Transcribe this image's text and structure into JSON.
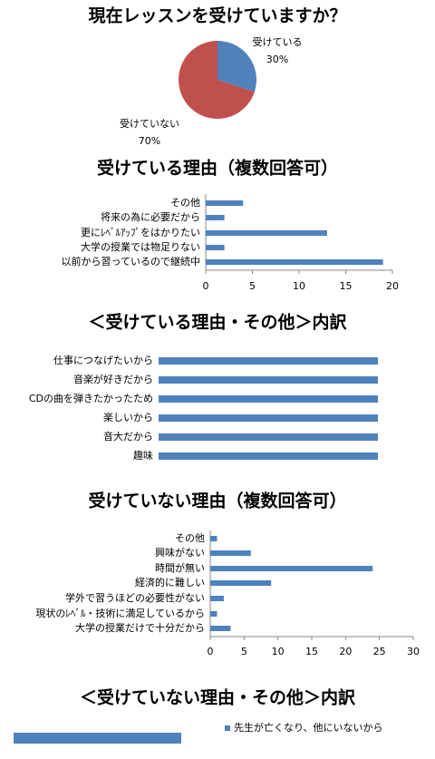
{
  "chart_data": [
    {
      "type": "pie",
      "title": "現在レッスンを受けていますか？",
      "categories": [
        "受けている",
        "受けていない"
      ],
      "values": [
        30,
        70
      ],
      "value_labels": [
        "30%",
        "70%"
      ],
      "colors": [
        "#4f81bd",
        "#c0504d"
      ]
    },
    {
      "type": "hbar",
      "title": "受けている理由（複数回答可）",
      "categories": [
        "その他",
        "将来の為に必要だから",
        "更にﾚﾍﾞﾙｱｯﾌﾟをはかりたい",
        "大学の授業では物足りない",
        "以前から習っているので継続中"
      ],
      "values": [
        4,
        2,
        13,
        2,
        19
      ],
      "color": "#4f81bd",
      "xlim": [
        0,
        20
      ],
      "xticks": [
        0,
        5,
        10,
        15,
        20
      ]
    },
    {
      "type": "hbar",
      "title": "＜受けている理由・その他＞内訳",
      "categories": [
        "仕事につなげたいから",
        "音楽が好きだから",
        "CDの曲を弾きたかったため",
        "楽しいから",
        "音大だから",
        "趣味"
      ],
      "values": [
        1,
        1,
        1,
        1,
        1,
        1
      ],
      "color": "#4f81bd",
      "xlim": [
        0,
        1
      ]
    },
    {
      "type": "hbar",
      "title": "受けていない理由（複数回答可）",
      "categories": [
        "その他",
        "興味がない",
        "時間が無い",
        "経済的に難しい",
        "学外で習うほどの必要性がない",
        "現状のﾚﾍﾞﾙ・技術に満足しているから",
        "大学の授業だけで十分だから"
      ],
      "values": [
        1,
        6,
        24,
        9,
        2,
        1,
        3
      ],
      "color": "#4f81bd",
      "xlim": [
        0,
        30
      ],
      "xticks": [
        0,
        5,
        10,
        15,
        20,
        25,
        30
      ]
    },
    {
      "type": "hbar",
      "title": "＜受けていない理由・その他＞内訳",
      "categories": [
        null
      ],
      "xlim": [
        0,
        1
      ],
      "series": [
        {
          "name": "先生が亡くなり、他にいないから",
          "color": "#4f81bd",
          "values": [
            1
          ]
        }
      ]
    }
  ]
}
